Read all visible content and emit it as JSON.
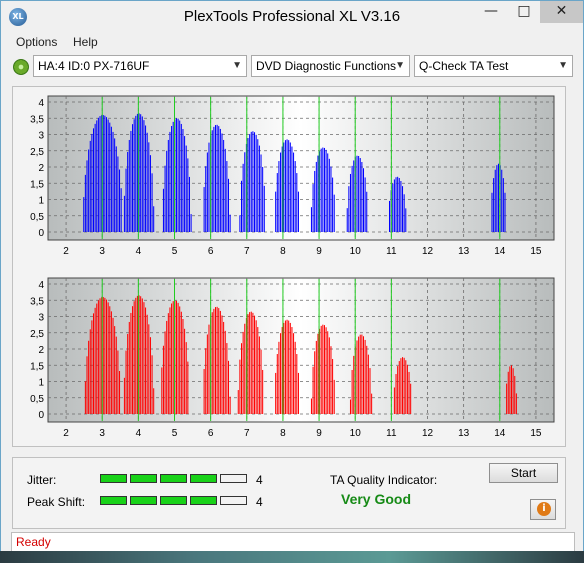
{
  "window": {
    "title": "PlexTools Professional XL V3.16",
    "app_icon_text": "XL",
    "minimize": "—",
    "maximize": "□",
    "close": "✕"
  },
  "menu": [
    {
      "label": "Options"
    },
    {
      "label": "Help"
    }
  ],
  "toolbar": {
    "drive": "HA:4 ID:0  PX-716UF",
    "function": "DVD Diagnostic Functions",
    "test": "Q-Check TA Test"
  },
  "bottom": {
    "jitter_label": "Jitter:",
    "jitter_value": "4",
    "jitter_level": 4,
    "peak_label": "Peak Shift:",
    "peak_value": "4",
    "peak_level": 4,
    "segments_total": 5,
    "quality_label": "TA Quality Indicator:",
    "quality_value": "Very Good",
    "start_label": "Start"
  },
  "status": "Ready",
  "chart_data": [
    {
      "type": "area",
      "color": "#0000ff",
      "x": [
        2,
        3,
        4,
        5,
        6,
        7,
        8,
        9,
        10,
        11,
        12,
        13,
        14,
        15
      ],
      "tick_labels": [
        "2",
        "3",
        "4",
        "5",
        "6",
        "7",
        "8",
        "9",
        "10",
        "11",
        "12",
        "13",
        "14",
        "15"
      ],
      "y_ticks": [
        "4",
        "3,5",
        "3",
        "2,5",
        "2",
        "1,5",
        "1",
        "0,5",
        "0"
      ],
      "ylim": [
        0,
        4
      ],
      "xlim": [
        1.5,
        15.5
      ],
      "marker_lines": [
        3,
        4,
        5,
        6,
        7,
        8,
        9,
        10,
        11,
        14
      ],
      "peaks": [
        {
          "center": 3.0,
          "height": 3.6,
          "width": 0.55
        },
        {
          "center": 4.0,
          "height": 3.65,
          "width": 0.42
        },
        {
          "center": 5.05,
          "height": 3.5,
          "width": 0.4
        },
        {
          "center": 6.15,
          "height": 3.3,
          "width": 0.38
        },
        {
          "center": 7.15,
          "height": 3.1,
          "width": 0.36
        },
        {
          "center": 8.1,
          "height": 2.85,
          "width": 0.35
        },
        {
          "center": 9.1,
          "height": 2.6,
          "width": 0.34
        },
        {
          "center": 10.05,
          "height": 2.35,
          "width": 0.3
        },
        {
          "center": 11.15,
          "height": 1.7,
          "width": 0.26
        },
        {
          "center": 13.95,
          "height": 2.1,
          "width": 0.22
        }
      ]
    },
    {
      "type": "area",
      "color": "#ff0000",
      "x": [
        2,
        3,
        4,
        5,
        6,
        7,
        8,
        9,
        10,
        11,
        12,
        13,
        14,
        15
      ],
      "tick_labels": [
        "2",
        "3",
        "4",
        "5",
        "6",
        "7",
        "8",
        "9",
        "10",
        "11",
        "12",
        "13",
        "14",
        "15"
      ],
      "y_ticks": [
        "4",
        "3,5",
        "3",
        "2,5",
        "2",
        "1,5",
        "1",
        "0,5",
        "0"
      ],
      "ylim": [
        0,
        4
      ],
      "xlim": [
        1.5,
        15.5
      ],
      "marker_lines": [
        3,
        4,
        5,
        6,
        7,
        8,
        9,
        10,
        11,
        14
      ],
      "peaks": [
        {
          "center": 3.0,
          "height": 3.6,
          "width": 0.5
        },
        {
          "center": 4.0,
          "height": 3.65,
          "width": 0.42
        },
        {
          "center": 5.0,
          "height": 3.5,
          "width": 0.4
        },
        {
          "center": 6.15,
          "height": 3.3,
          "width": 0.38
        },
        {
          "center": 7.1,
          "height": 3.15,
          "width": 0.36
        },
        {
          "center": 8.1,
          "height": 2.9,
          "width": 0.35
        },
        {
          "center": 9.1,
          "height": 2.75,
          "width": 0.33
        },
        {
          "center": 10.15,
          "height": 2.45,
          "width": 0.3
        },
        {
          "center": 11.3,
          "height": 1.75,
          "width": 0.26
        },
        {
          "center": 14.3,
          "height": 1.5,
          "width": 0.16
        }
      ]
    }
  ]
}
